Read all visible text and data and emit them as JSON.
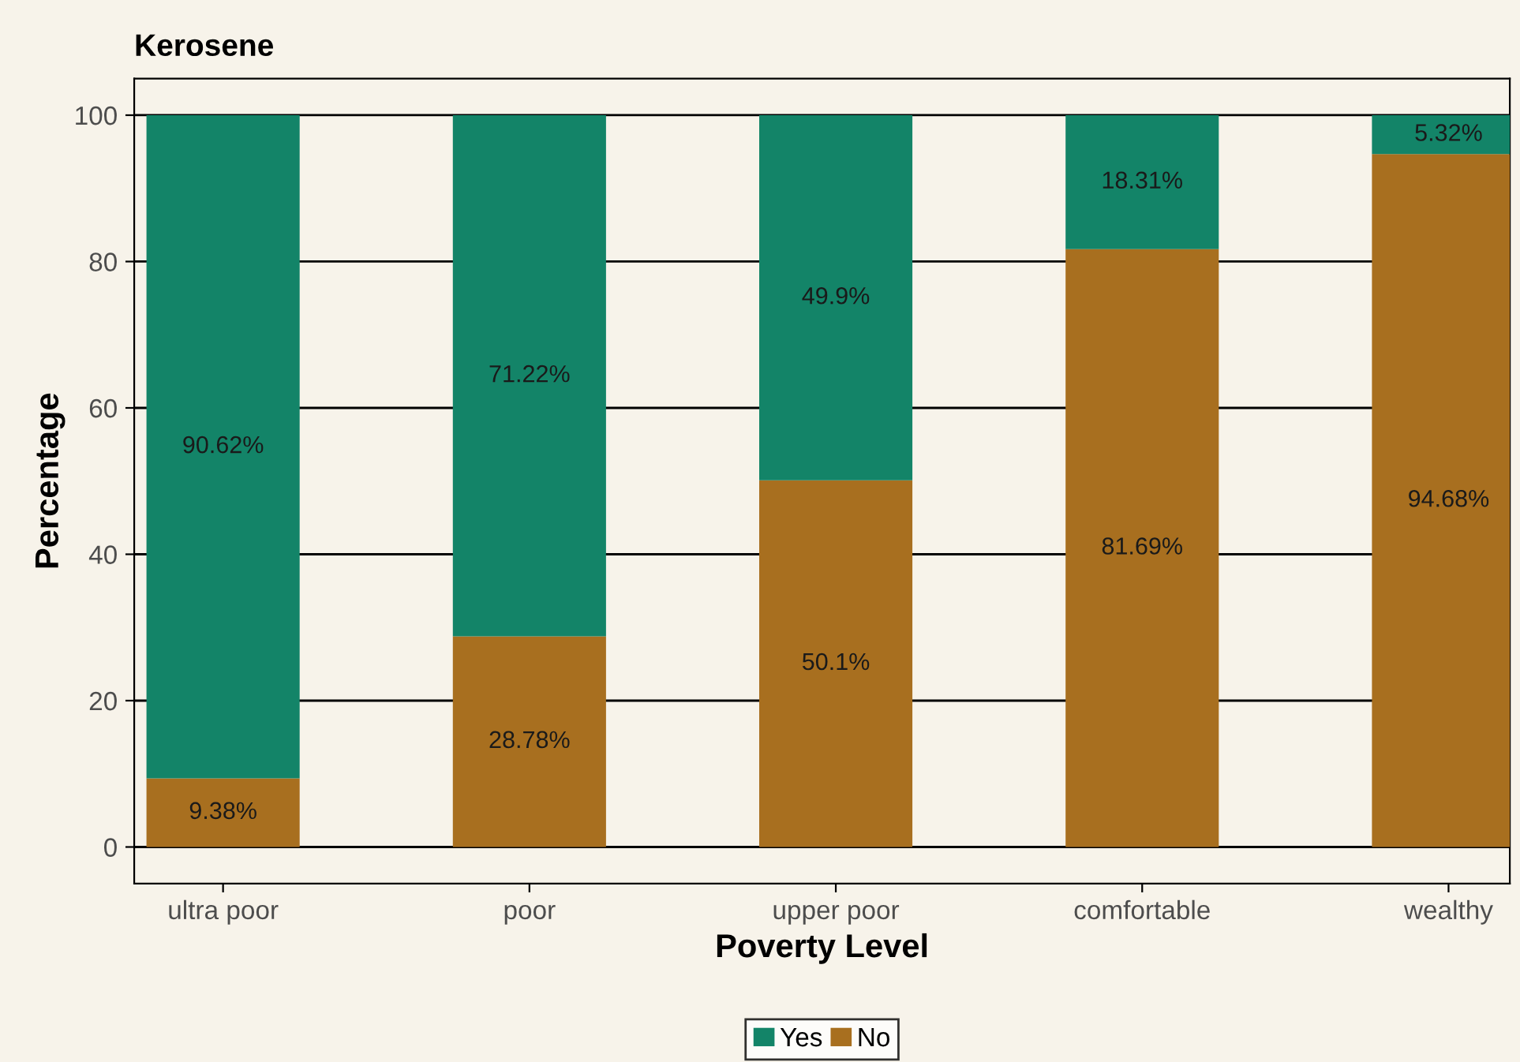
{
  "chart_data": {
    "type": "bar",
    "title": "Kerosene",
    "xlabel": "Poverty Level",
    "ylabel": "Percentage",
    "categories": [
      "ultra poor",
      "poor",
      "upper poor",
      "comfortable",
      "wealthy"
    ],
    "stacked": true,
    "series": [
      {
        "name": "No",
        "color": "#a86f1f",
        "values": [
          9.38,
          28.78,
          50.1,
          81.69,
          94.68
        ],
        "value_labels": [
          "9.38%",
          "28.78%",
          "50.1%",
          "81.69%",
          "94.68%"
        ]
      },
      {
        "name": "Yes",
        "color": "#138468",
        "values": [
          90.62,
          71.22,
          49.9,
          18.31,
          5.32
        ],
        "value_labels": [
          "90.62%",
          "71.22%",
          "49.9%",
          "18.31%",
          "5.32%"
        ]
      }
    ],
    "ylim": [
      -5,
      105
    ],
    "yticks": [
      0,
      20,
      40,
      60,
      80,
      100
    ],
    "grid": "y",
    "legend": "bottom"
  }
}
